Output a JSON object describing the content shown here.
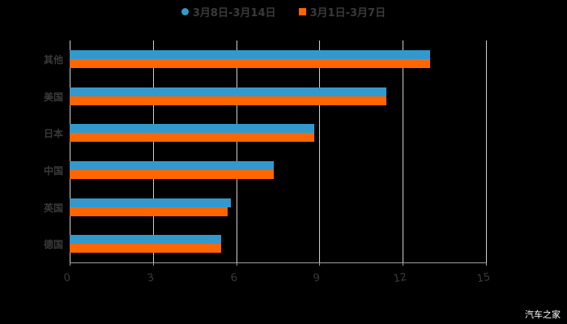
{
  "chart_data": {
    "type": "bar",
    "orientation": "horizontal",
    "title": "",
    "xlabel": "",
    "ylabel": "",
    "categories": [
      "其他",
      "美国",
      "日本",
      "中国",
      "英国",
      "德国"
    ],
    "series": [
      {
        "name": "3月8日-3月14日",
        "color": "#3399cc",
        "values": [
          13.0,
          11.4,
          8.8,
          7.35,
          5.8,
          5.45
        ]
      },
      {
        "name": "3月1日-3月7日",
        "color": "#ff6600",
        "values": [
          13.0,
          11.4,
          8.8,
          7.35,
          5.7,
          5.45
        ]
      }
    ],
    "xlim": [
      0,
      15
    ],
    "xticks": [
      "0",
      "3",
      "6",
      "9",
      "12",
      "15"
    ],
    "grid": true,
    "legend_position": "top"
  },
  "legend": [
    {
      "label": "3月8日-3月14日",
      "color": "#3399cc",
      "shape": "circle"
    },
    {
      "label": "3月1日-3月7日",
      "color": "#ff6600",
      "shape": "square"
    }
  ],
  "watermark": "汽车之家"
}
